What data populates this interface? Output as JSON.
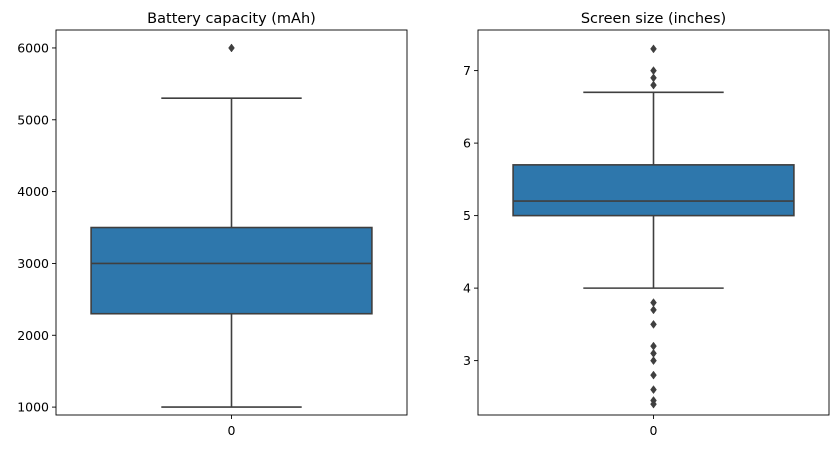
{
  "chart_data": [
    {
      "type": "box",
      "title": "Battery capacity (mAh)",
      "categories": [
        "0"
      ],
      "ylim": [
        890,
        6250
      ],
      "yticks": [
        1000,
        2000,
        3000,
        4000,
        5000,
        6000
      ],
      "ytick_labels": [
        "1000",
        "2000",
        "3000",
        "4000",
        "5000",
        "6000"
      ],
      "box": {
        "q1": 2300,
        "median": 3000,
        "q3": 3500,
        "whisker_low": 1000,
        "whisker_high": 5300
      },
      "outliers": [
        6000
      ],
      "grid": false,
      "color": "#2e77ac"
    },
    {
      "type": "box",
      "title": "Screen size (inches)",
      "categories": [
        "0"
      ],
      "ylim": [
        2.25,
        7.56
      ],
      "yticks": [
        3,
        4,
        5,
        6,
        7
      ],
      "ytick_labels": [
        "3",
        "4",
        "5",
        "6",
        "7"
      ],
      "box": {
        "q1": 5.0,
        "median": 5.2,
        "q3": 5.7,
        "whisker_low": 4.0,
        "whisker_high": 6.7
      },
      "outliers": [
        7.3,
        7.0,
        6.9,
        6.8,
        3.8,
        3.7,
        3.5,
        3.2,
        3.1,
        3.0,
        2.8,
        2.6,
        2.45,
        2.4
      ],
      "grid": false,
      "color": "#2e77ac"
    }
  ]
}
